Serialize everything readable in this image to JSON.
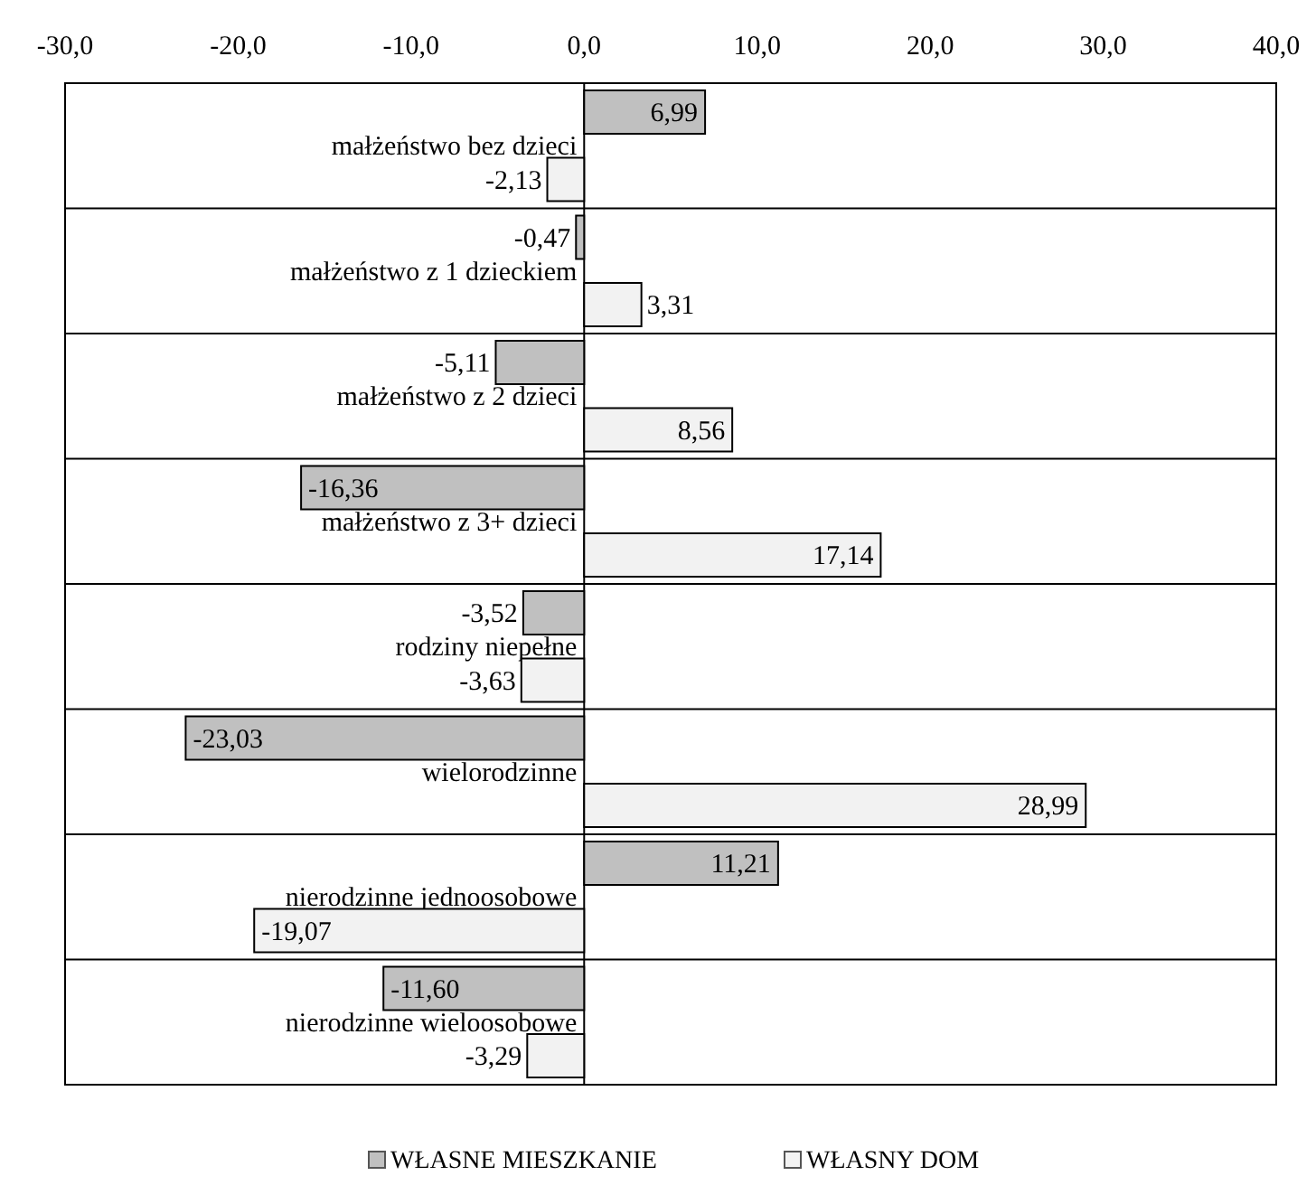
{
  "chart_data": {
    "type": "bar",
    "orientation": "horizontal",
    "categories": [
      "małżeństwo bez dzieci",
      "małżeństwo z 1 dzieckiem",
      "małżeństwo z 2 dzieci",
      "małżeństwo z 3+ dzieci",
      "rodziny niepełne",
      "wielorodzinne",
      "nierodzinne jednoosobowe",
      "nierodzinne wieloosobowe"
    ],
    "series": [
      {
        "name": "WŁASNE MIESZKANIE",
        "color": "#c0c0c0",
        "values": [
          6.99,
          -0.47,
          -5.11,
          -16.36,
          -3.52,
          -23.03,
          11.21,
          -11.6
        ],
        "value_labels": [
          "6,99",
          "-0,47",
          "-5,11",
          "-16,36",
          "-3,52",
          "-23,03",
          "11,21",
          "-11,60"
        ]
      },
      {
        "name": "WŁASNY DOM",
        "color": "#f2f2f2",
        "values": [
          -2.13,
          3.31,
          8.56,
          17.14,
          -3.63,
          28.99,
          -19.07,
          -3.29
        ],
        "value_labels": [
          "-2,13",
          "3,31",
          "8,56",
          "17,14",
          "-3,63",
          "28,99",
          "-19,07",
          "-3,29"
        ]
      }
    ],
    "xlim": [
      -30,
      40
    ],
    "xticks": [
      {
        "value": -30,
        "label": "-30,0"
      },
      {
        "value": -20,
        "label": "-20,0"
      },
      {
        "value": -10,
        "label": "-10,0"
      },
      {
        "value": 0,
        "label": "0,0"
      },
      {
        "value": 10,
        "label": "10,0"
      },
      {
        "value": 20,
        "label": "20,0"
      },
      {
        "value": 30,
        "label": "30,0"
      },
      {
        "value": 40,
        "label": "40,0"
      }
    ],
    "legend": "bottom"
  }
}
